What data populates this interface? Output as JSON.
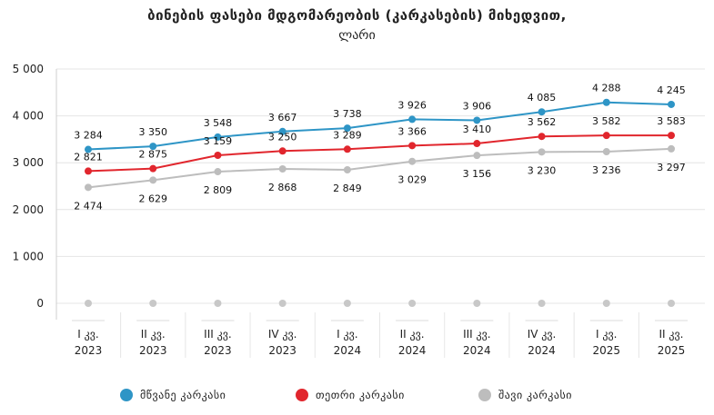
{
  "chart_data": {
    "type": "line",
    "title": "ბინების ფასები მდგომარეობის (კარკასების) მიხედვით,",
    "subtitle": "ლარი",
    "categories": [
      [
        "I კვ.",
        "2023"
      ],
      [
        "II კვ.",
        "2023"
      ],
      [
        "III კვ.",
        "2023"
      ],
      [
        "IV კვ.",
        "2023"
      ],
      [
        "I კვ.",
        "2024"
      ],
      [
        "II კვ.",
        "2024"
      ],
      [
        "III კვ.",
        "2024"
      ],
      [
        "IV კვ.",
        "2024"
      ],
      [
        "I კვ.",
        "2025"
      ],
      [
        "II კვ.",
        "2025"
      ]
    ],
    "ylim": [
      0,
      5000
    ],
    "yticks": [
      0,
      1000,
      2000,
      3000,
      4000,
      5000
    ],
    "ytick_labels": [
      "0",
      "1 000",
      "2 000",
      "3 000",
      "4 000",
      "5 000"
    ],
    "grid": true,
    "legend_position": "bottom",
    "series": [
      {
        "name": "მწვანე კარკასი",
        "color": "#2E95C6",
        "values": [
          3284,
          3350,
          3548,
          3667,
          3738,
          3926,
          3906,
          4085,
          4288,
          4245
        ],
        "labels": [
          "3 284",
          "3 350",
          "3 548",
          "3 667",
          "3 738",
          "3 926",
          "3 906",
          "4 085",
          "4 288",
          "4 245"
        ],
        "label_side": "above"
      },
      {
        "name": "თეთრი კარკასი",
        "color": "#E1262D",
        "values": [
          2821,
          2875,
          3159,
          3250,
          3289,
          3366,
          3410,
          3562,
          3582,
          3583
        ],
        "labels": [
          "2 821",
          "2 875",
          "3 159",
          "3 250",
          "3 289",
          "3 366",
          "3 410",
          "3 562",
          "3 582",
          "3 583"
        ],
        "label_side": "above"
      },
      {
        "name": "შავი კარკასი",
        "color": "#BDBDBD",
        "values": [
          2474,
          2629,
          2809,
          2868,
          2849,
          3029,
          3156,
          3230,
          3236,
          3297
        ],
        "labels": [
          "2 474",
          "2 629",
          "2 809",
          "2 868",
          "2 849",
          "3 029",
          "3 156",
          "3 230",
          "3 236",
          "3 297"
        ],
        "label_side": "below"
      }
    ],
    "baseline_markers": {
      "values": [
        0,
        0,
        0,
        0,
        0,
        0,
        0,
        0,
        0,
        0
      ],
      "color": "#C8C8C8"
    }
  }
}
